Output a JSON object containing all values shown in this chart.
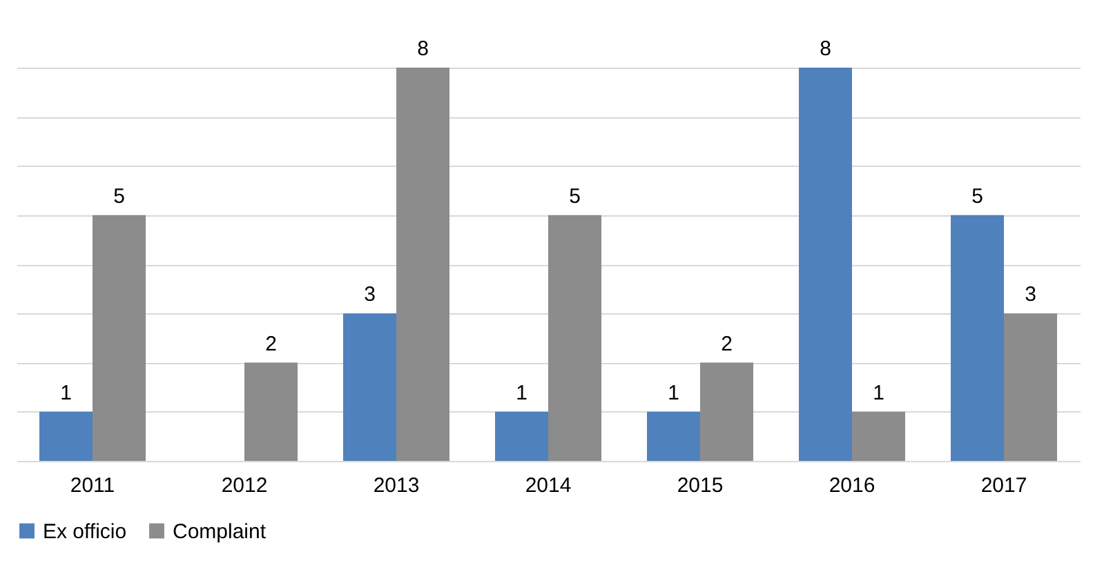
{
  "chart_data": {
    "type": "bar",
    "categories": [
      "2011",
      "2012",
      "2013",
      "2014",
      "2015",
      "2016",
      "2017"
    ],
    "series": [
      {
        "name": "Ex officio",
        "color": "#4f81bd",
        "values": [
          1,
          null,
          3,
          1,
          1,
          8,
          5
        ]
      },
      {
        "name": "Complaint",
        "color": "#8c8c8c",
        "values": [
          5,
          2,
          8,
          5,
          2,
          1,
          3
        ]
      }
    ],
    "tick_labels": "x",
    "grid": "y",
    "legend": "bottom",
    "data_labels": true
  }
}
